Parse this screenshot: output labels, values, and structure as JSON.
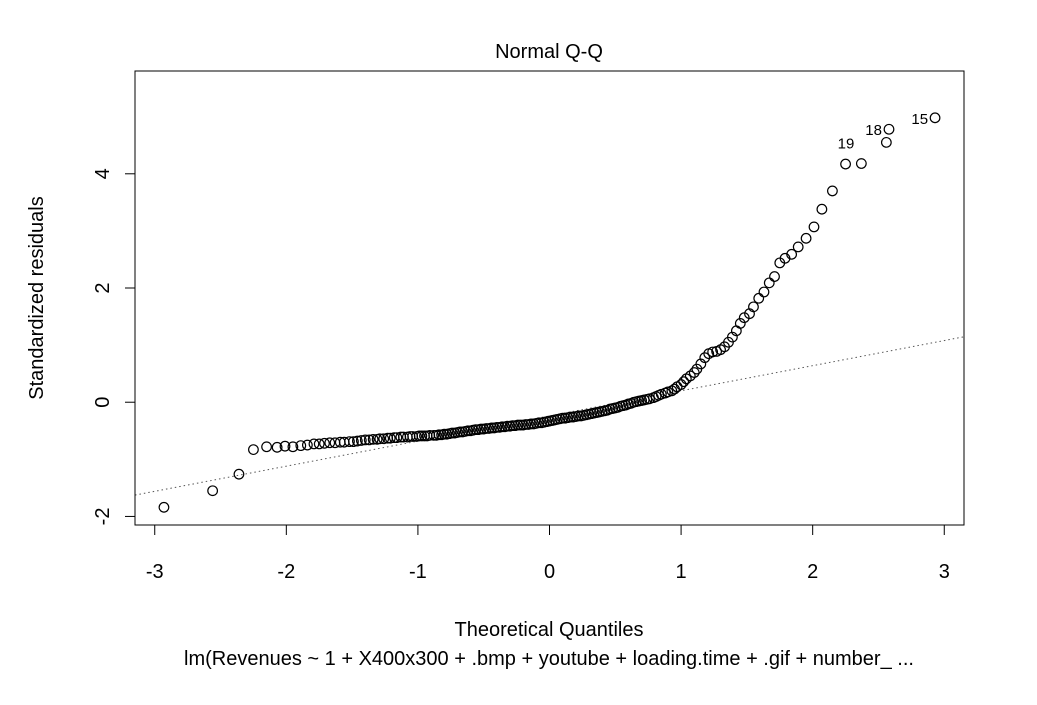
{
  "chart_data": {
    "type": "scatter",
    "title": "Normal Q-Q",
    "xlabel": "Theoretical Quantiles",
    "ylabel": "Standardized residuals",
    "subtitle": "lm(Revenues ~ 1 + X400x300 + .bmp + youtube + loading.time + .gif + number_ ...",
    "xlim": [
      -3.15,
      3.15
    ],
    "ylim": [
      -2.15,
      5.8
    ],
    "x_ticks": [
      -3,
      -2,
      -1,
      0,
      1,
      2,
      3
    ],
    "y_ticks": [
      -2,
      0,
      2,
      4
    ],
    "grid": false,
    "legend": "none",
    "reference_line": {
      "intercept": -0.24,
      "slope": 0.44,
      "style": "dotted"
    },
    "points": [
      [
        -2.93,
        -1.84
      ],
      [
        -2.56,
        -1.55
      ],
      [
        -2.36,
        -1.26
      ],
      [
        -2.25,
        -0.83
      ],
      [
        -2.15,
        -0.78
      ],
      [
        -2.07,
        -0.79
      ],
      [
        -2.01,
        -0.77
      ],
      [
        -1.95,
        -0.78
      ],
      [
        -1.89,
        -0.76
      ],
      [
        -1.84,
        -0.75
      ],
      [
        -1.79,
        -0.73
      ],
      [
        -1.75,
        -0.73
      ],
      [
        -1.71,
        -0.72
      ],
      [
        -1.67,
        -0.71
      ],
      [
        -1.63,
        -0.71
      ],
      [
        -1.59,
        -0.7
      ],
      [
        -1.56,
        -0.7
      ],
      [
        -1.52,
        -0.69
      ],
      [
        -1.49,
        -0.69
      ],
      [
        -1.46,
        -0.68
      ],
      [
        -1.43,
        -0.67
      ],
      [
        -1.4,
        -0.66
      ],
      [
        -1.37,
        -0.66
      ],
      [
        -1.34,
        -0.65
      ],
      [
        -1.31,
        -0.65
      ],
      [
        -1.29,
        -0.64
      ],
      [
        -1.26,
        -0.64
      ],
      [
        -1.23,
        -0.63
      ],
      [
        -1.21,
        -0.63
      ],
      [
        -1.18,
        -0.62
      ],
      [
        -1.16,
        -0.62
      ],
      [
        -1.13,
        -0.61
      ],
      [
        -1.11,
        -0.61
      ],
      [
        -1.08,
        -0.61
      ],
      [
        -1.06,
        -0.6
      ],
      [
        -1.04,
        -0.6
      ],
      [
        -1.01,
        -0.6
      ],
      [
        -0.99,
        -0.59
      ],
      [
        -0.97,
        -0.59
      ],
      [
        -0.95,
        -0.59
      ],
      [
        -0.93,
        -0.59
      ],
      [
        -0.91,
        -0.58
      ],
      [
        -0.88,
        -0.58
      ],
      [
        -0.86,
        -0.58
      ],
      [
        -0.84,
        -0.57
      ],
      [
        -0.82,
        -0.57
      ],
      [
        -0.8,
        -0.56
      ],
      [
        -0.78,
        -0.56
      ],
      [
        -0.76,
        -0.55
      ],
      [
        -0.74,
        -0.54
      ],
      [
        -0.72,
        -0.54
      ],
      [
        -0.7,
        -0.53
      ],
      [
        -0.68,
        -0.52
      ],
      [
        -0.66,
        -0.52
      ],
      [
        -0.64,
        -0.51
      ],
      [
        -0.62,
        -0.5
      ],
      [
        -0.6,
        -0.5
      ],
      [
        -0.58,
        -0.49
      ],
      [
        -0.56,
        -0.48
      ],
      [
        -0.54,
        -0.48
      ],
      [
        -0.52,
        -0.47
      ],
      [
        -0.5,
        -0.47
      ],
      [
        -0.48,
        -0.46
      ],
      [
        -0.46,
        -0.46
      ],
      [
        -0.44,
        -0.45
      ],
      [
        -0.42,
        -0.45
      ],
      [
        -0.4,
        -0.44
      ],
      [
        -0.38,
        -0.44
      ],
      [
        -0.36,
        -0.43
      ],
      [
        -0.34,
        -0.43
      ],
      [
        -0.32,
        -0.42
      ],
      [
        -0.3,
        -0.42
      ],
      [
        -0.28,
        -0.41
      ],
      [
        -0.26,
        -0.41
      ],
      [
        -0.24,
        -0.4
      ],
      [
        -0.22,
        -0.4
      ],
      [
        -0.2,
        -0.4
      ],
      [
        -0.18,
        -0.39
      ],
      [
        -0.16,
        -0.39
      ],
      [
        -0.14,
        -0.38
      ],
      [
        -0.12,
        -0.38
      ],
      [
        -0.1,
        -0.37
      ],
      [
        -0.08,
        -0.36
      ],
      [
        -0.06,
        -0.36
      ],
      [
        -0.04,
        -0.35
      ],
      [
        -0.02,
        -0.34
      ],
      [
        0.0,
        -0.33
      ],
      [
        0.02,
        -0.32
      ],
      [
        0.04,
        -0.31
      ],
      [
        0.06,
        -0.3
      ],
      [
        0.08,
        -0.29
      ],
      [
        0.1,
        -0.28
      ],
      [
        0.12,
        -0.28
      ],
      [
        0.14,
        -0.27
      ],
      [
        0.16,
        -0.26
      ],
      [
        0.18,
        -0.26
      ],
      [
        0.2,
        -0.25
      ],
      [
        0.22,
        -0.24
      ],
      [
        0.24,
        -0.24
      ],
      [
        0.26,
        -0.23
      ],
      [
        0.28,
        -0.22
      ],
      [
        0.3,
        -0.21
      ],
      [
        0.32,
        -0.2
      ],
      [
        0.34,
        -0.19
      ],
      [
        0.36,
        -0.18
      ],
      [
        0.38,
        -0.17
      ],
      [
        0.4,
        -0.16
      ],
      [
        0.42,
        -0.15
      ],
      [
        0.44,
        -0.14
      ],
      [
        0.46,
        -0.12
      ],
      [
        0.48,
        -0.11
      ],
      [
        0.5,
        -0.1
      ],
      [
        0.52,
        -0.09
      ],
      [
        0.54,
        -0.07
      ],
      [
        0.56,
        -0.06
      ],
      [
        0.58,
        -0.05
      ],
      [
        0.6,
        -0.03
      ],
      [
        0.62,
        -0.02
      ],
      [
        0.64,
        0.0
      ],
      [
        0.66,
        0.01
      ],
      [
        0.68,
        0.02
      ],
      [
        0.7,
        0.03
      ],
      [
        0.72,
        0.04
      ],
      [
        0.74,
        0.05
      ],
      [
        0.76,
        0.06
      ],
      [
        0.79,
        0.08
      ],
      [
        0.81,
        0.1
      ],
      [
        0.83,
        0.12
      ],
      [
        0.85,
        0.14
      ],
      [
        0.88,
        0.16
      ],
      [
        0.9,
        0.18
      ],
      [
        0.93,
        0.2
      ],
      [
        0.95,
        0.23
      ],
      [
        0.97,
        0.27
      ],
      [
        1.0,
        0.31
      ],
      [
        1.02,
        0.36
      ],
      [
        1.04,
        0.41
      ],
      [
        1.07,
        0.46
      ],
      [
        1.1,
        0.52
      ],
      [
        1.12,
        0.58
      ],
      [
        1.15,
        0.67
      ],
      [
        1.18,
        0.78
      ],
      [
        1.21,
        0.85
      ],
      [
        1.24,
        0.88
      ],
      [
        1.27,
        0.89
      ],
      [
        1.3,
        0.92
      ],
      [
        1.33,
        0.97
      ],
      [
        1.36,
        1.05
      ],
      [
        1.39,
        1.14
      ],
      [
        1.42,
        1.25
      ],
      [
        1.45,
        1.38
      ],
      [
        1.48,
        1.48
      ],
      [
        1.52,
        1.55
      ],
      [
        1.55,
        1.67
      ],
      [
        1.59,
        1.82
      ],
      [
        1.63,
        1.93
      ],
      [
        1.67,
        2.09
      ],
      [
        1.71,
        2.2
      ],
      [
        1.75,
        2.44
      ],
      [
        1.79,
        2.52
      ],
      [
        1.84,
        2.59
      ],
      [
        1.89,
        2.72
      ],
      [
        1.95,
        2.87
      ],
      [
        2.01,
        3.07
      ],
      [
        2.07,
        3.38
      ],
      [
        2.15,
        3.7
      ],
      [
        2.25,
        4.17
      ],
      [
        2.37,
        4.18
      ],
      [
        2.56,
        4.55
      ],
      [
        2.58,
        4.78
      ],
      [
        2.93,
        4.98
      ]
    ],
    "point_labels": [
      {
        "label": "15",
        "x": 2.93,
        "y": 4.98
      },
      {
        "label": "18",
        "x": 2.58,
        "y": 4.78
      },
      {
        "label": "19",
        "x": 2.37,
        "y": 4.55
      }
    ]
  }
}
